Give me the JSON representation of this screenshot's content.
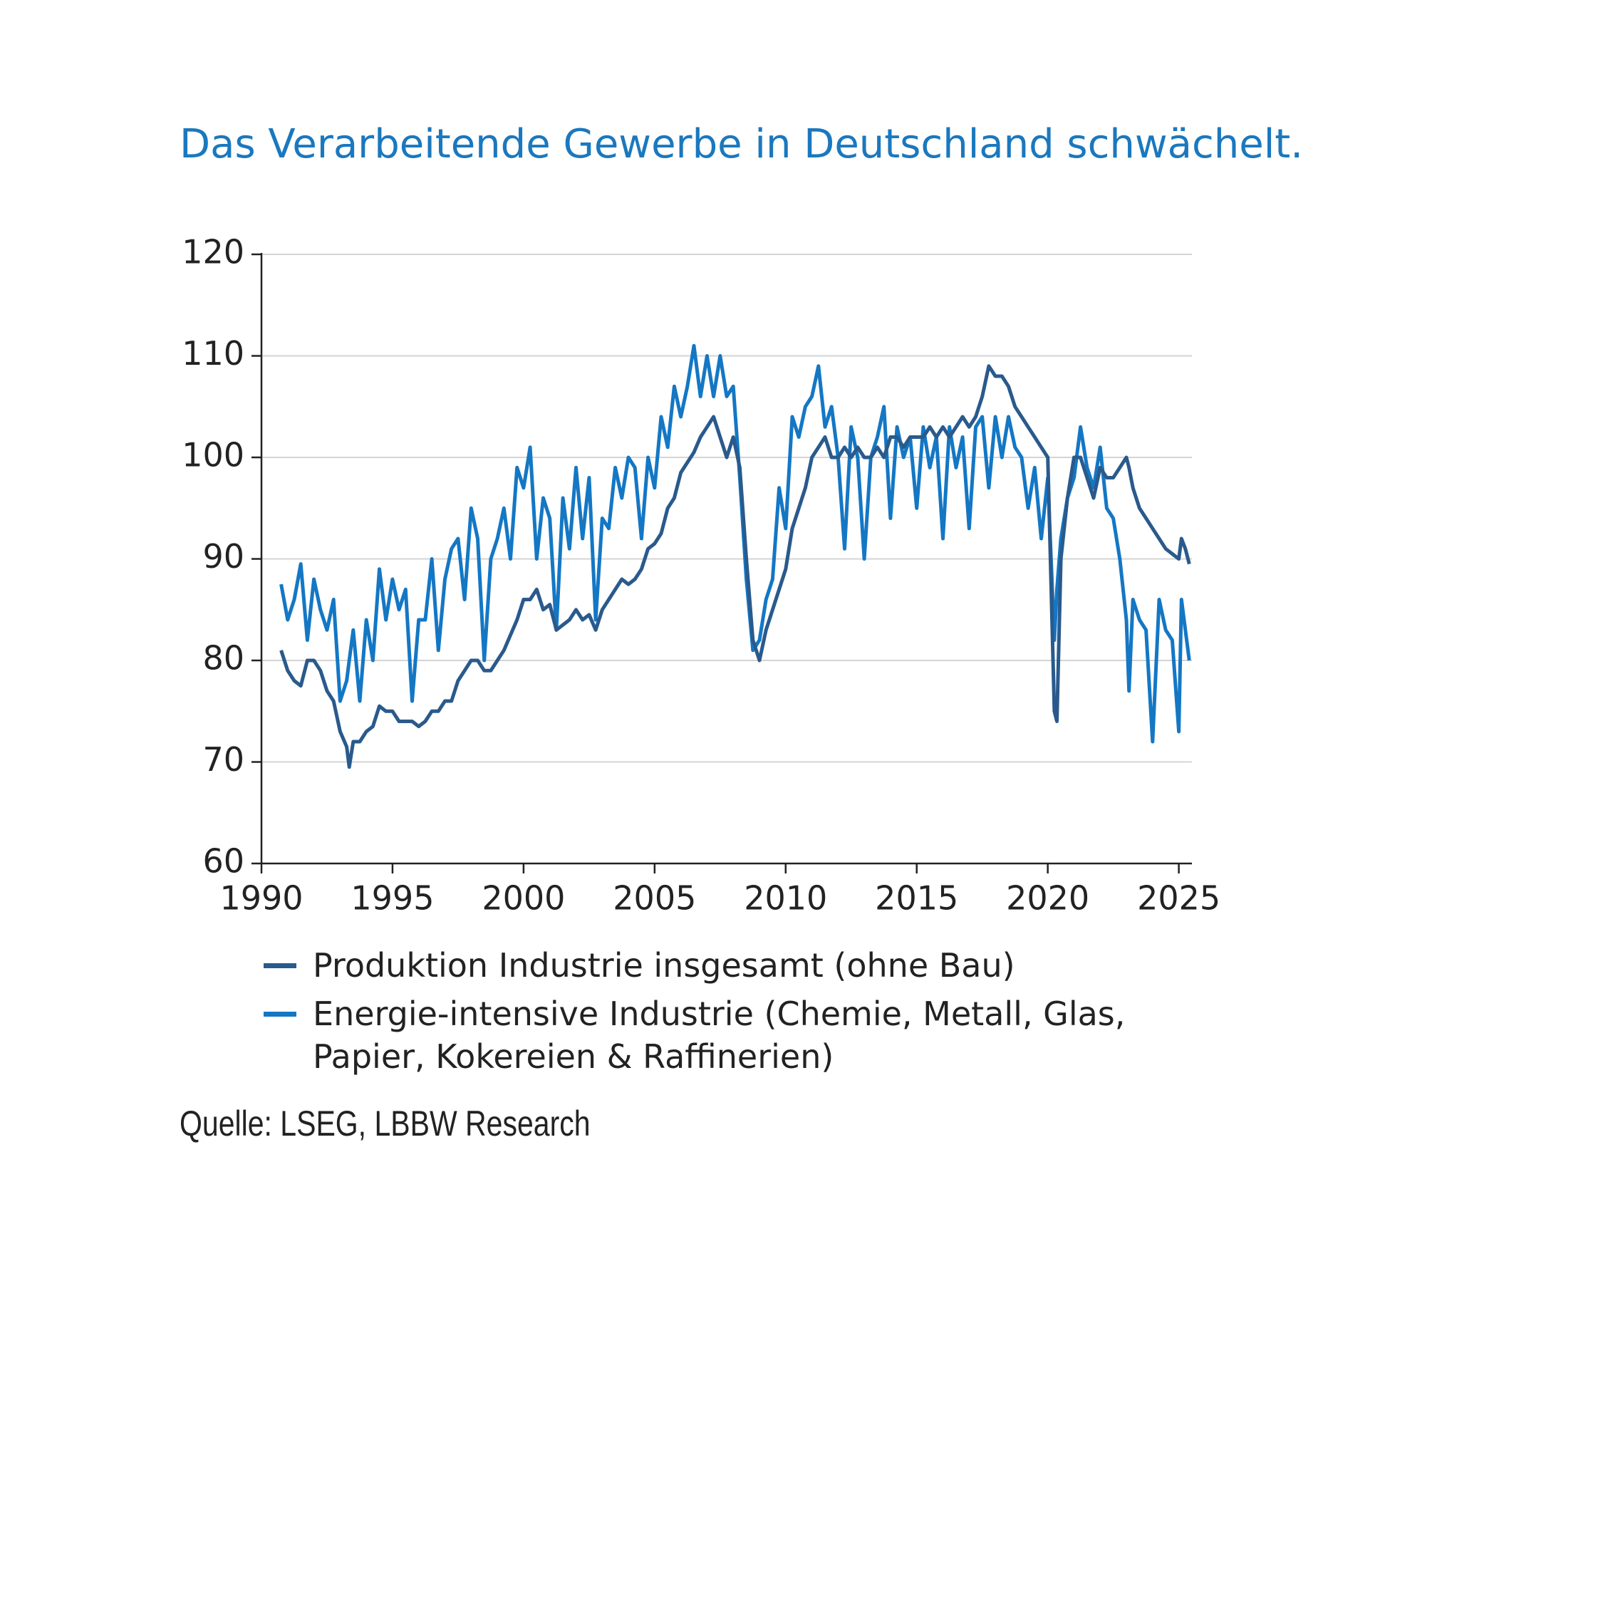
{
  "chart_data": {
    "type": "line",
    "title": "Das Verarbeitende Gewerbe in Deutschland schwächelt.",
    "source": "Quelle: LSEG, LBBW Research",
    "x": [
      1990.75,
      1991.0,
      1991.25,
      1991.5,
      1991.75,
      1992.0,
      1992.25,
      1992.5,
      1992.75,
      1993.0,
      1993.25,
      1993.35,
      1993.5,
      1993.75,
      1994.0,
      1994.25,
      1994.5,
      1994.75,
      1995.0,
      1995.25,
      1995.5,
      1995.75,
      1996.0,
      1996.25,
      1996.5,
      1996.75,
      1997.0,
      1997.25,
      1997.5,
      1997.75,
      1998.0,
      1998.25,
      1998.5,
      1998.75,
      1999.0,
      1999.25,
      1999.5,
      1999.75,
      2000.0,
      2000.25,
      2000.5,
      2000.75,
      2001.0,
      2001.25,
      2001.5,
      2001.75,
      2002.0,
      2002.25,
      2002.5,
      2002.75,
      2003.0,
      2003.25,
      2003.5,
      2003.75,
      2004.0,
      2004.25,
      2004.5,
      2004.75,
      2005.0,
      2005.25,
      2005.5,
      2005.75,
      2006.0,
      2006.25,
      2006.5,
      2006.75,
      2007.0,
      2007.25,
      2007.5,
      2007.75,
      2008.0,
      2008.25,
      2008.5,
      2008.75,
      2009.0,
      2009.25,
      2009.5,
      2009.75,
      2010.0,
      2010.25,
      2010.5,
      2010.75,
      2011.0,
      2011.25,
      2011.5,
      2011.75,
      2012.0,
      2012.25,
      2012.5,
      2012.75,
      2013.0,
      2013.25,
      2013.5,
      2013.75,
      2014.0,
      2014.25,
      2014.5,
      2014.75,
      2015.0,
      2015.25,
      2015.5,
      2015.75,
      2016.0,
      2016.25,
      2016.5,
      2016.75,
      2017.0,
      2017.25,
      2017.5,
      2017.75,
      2018.0,
      2018.25,
      2018.5,
      2018.75,
      2019.0,
      2019.25,
      2019.5,
      2019.75,
      2020.0,
      2020.25,
      2020.35,
      2020.5,
      2020.75,
      2021.0,
      2021.25,
      2021.5,
      2021.75,
      2022.0,
      2022.25,
      2022.5,
      2022.75,
      2023.0,
      2023.1,
      2023.25,
      2023.5,
      2023.75,
      2024.0,
      2024.25,
      2024.5,
      2024.75,
      2025.0,
      2025.1,
      2025.25,
      2025.4
    ],
    "series": [
      {
        "name": "Produktion Industrie insgesamt (ohne Bau)",
        "color": "#2a5a8c",
        "values": [
          81,
          79,
          78,
          77.5,
          80,
          80,
          79,
          77,
          76,
          73,
          71.5,
          69.5,
          72,
          72,
          73,
          73.5,
          75.5,
          75,
          75,
          74,
          74,
          74,
          73.5,
          74,
          75,
          75,
          76,
          76,
          78,
          79,
          80,
          80,
          79,
          79,
          80,
          81,
          82.5,
          84,
          86,
          86,
          87,
          85,
          85.5,
          83,
          83.5,
          84,
          85,
          84,
          84.5,
          83,
          85,
          86,
          87,
          88,
          87.5,
          88,
          89,
          91,
          91.5,
          92.5,
          95,
          96,
          98.5,
          99.5,
          100.5,
          102,
          103,
          104,
          102,
          100,
          102,
          99,
          90,
          82,
          80,
          83,
          85,
          87,
          89,
          93,
          95,
          97,
          100,
          101,
          102,
          100,
          100,
          101,
          100,
          101,
          100,
          100,
          101,
          100,
          102,
          102,
          101,
          102,
          102,
          102,
          103,
          102,
          103,
          102,
          103,
          104,
          103,
          104,
          106,
          109,
          108,
          108,
          107,
          105,
          104,
          103,
          102,
          101,
          100,
          75,
          74,
          90,
          96,
          100,
          100,
          98,
          96,
          99,
          98,
          98,
          99,
          100,
          99,
          97,
          95,
          94,
          93,
          92,
          91,
          90.5,
          90,
          92,
          91,
          89.5
        ]
      },
      {
        "name": "Energie-intensive Industrie (Chemie, Metall, Glas, Papier, Kokereien & Raffinerien)",
        "color": "#1477c4",
        "values": [
          87.5,
          84,
          86,
          89.5,
          82,
          88,
          85,
          83,
          86,
          76,
          78,
          80,
          83,
          76,
          84,
          80,
          89,
          84,
          88,
          85,
          87,
          76,
          84,
          84,
          90,
          81,
          88,
          91,
          92,
          86,
          95,
          92,
          80,
          90,
          92,
          95,
          90,
          99,
          97,
          101,
          90,
          96,
          94,
          83,
          96,
          91,
          99,
          92,
          98,
          84,
          94,
          93,
          99,
          96,
          100,
          99,
          92,
          100,
          97,
          104,
          101,
          107,
          104,
          107,
          111,
          106,
          110,
          106,
          110,
          106,
          107,
          98,
          88,
          81,
          82,
          86,
          88,
          97,
          93,
          104,
          102,
          105,
          106,
          109,
          103,
          105,
          100,
          91,
          103,
          100,
          90,
          100,
          102,
          105,
          94,
          103,
          100,
          102,
          95,
          103,
          99,
          102,
          92,
          103,
          99,
          102,
          93,
          103,
          104,
          97,
          104,
          100,
          104,
          101,
          100,
          95,
          99,
          92,
          98,
          82,
          87,
          92,
          96,
          98,
          103,
          99,
          97,
          101,
          95,
          94,
          90,
          84,
          77,
          86,
          84,
          83,
          72,
          86,
          83,
          82,
          73,
          86,
          83,
          80
        ]
      }
    ],
    "xlim": [
      1990,
      2025.5
    ],
    "ylim": [
      60,
      120
    ],
    "xticks": [
      1990,
      1995,
      2000,
      2005,
      2010,
      2015,
      2020,
      2025
    ],
    "yticks": [
      60,
      70,
      80,
      90,
      100,
      110,
      120
    ],
    "grid": true
  }
}
